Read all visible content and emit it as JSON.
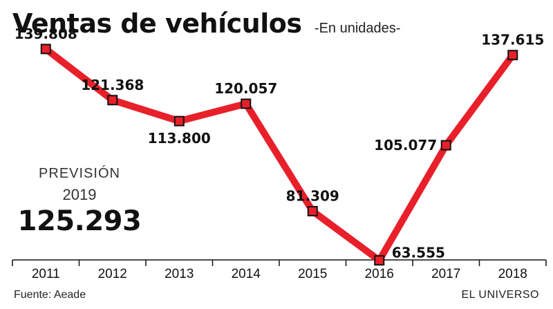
{
  "chart_data": {
    "type": "line",
    "title": "Ventas de vehículos",
    "subtitle": "-En unidades-",
    "categories": [
      "2011",
      "2012",
      "2013",
      "2014",
      "2015",
      "2016",
      "2017",
      "2018"
    ],
    "values": [
      139808,
      121368,
      113800,
      120057,
      81309,
      63555,
      105077,
      137615
    ],
    "value_labels": [
      "139.808",
      "121.368",
      "113.800",
      "120.057",
      "81.309",
      "63.555",
      "105.077",
      "137.615"
    ],
    "ylim": [
      50000,
      150000
    ],
    "grid": false,
    "line_color": "#e8202a",
    "marker_color": "#e8202a",
    "marker_edge": "#111111"
  },
  "forecast": {
    "label": "PREVISIÓN",
    "year": "2019",
    "value": "125.293"
  },
  "footer": {
    "source": "Fuente: Aeade",
    "publisher": "EL UNIVERSO"
  }
}
